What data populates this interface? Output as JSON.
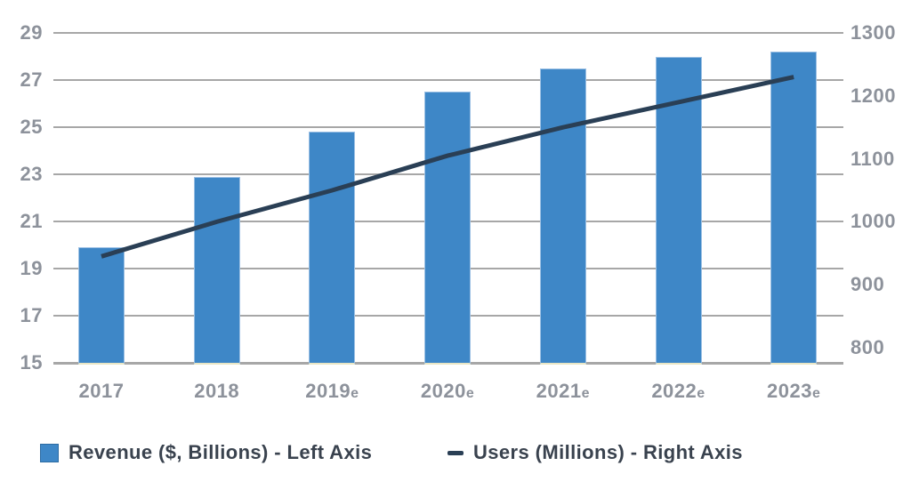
{
  "chart_data": {
    "type": "combo-bar-line",
    "categories": [
      "2017",
      "2018",
      "2019e",
      "2020e",
      "2021e",
      "2022e",
      "2023e"
    ],
    "series": [
      {
        "name": "Revenue ($, Billions) - Left Axis",
        "type": "bar",
        "axis": "left",
        "color": "#3e87c7",
        "values": [
          19.9,
          22.9,
          24.8,
          26.5,
          27.5,
          28.0,
          28.2
        ]
      },
      {
        "name": "Users (Millions) - Right Axis",
        "type": "line",
        "axis": "right",
        "color": "#2a3f55",
        "values": [
          945,
          1000,
          1050,
          1105,
          1150,
          1190,
          1230
        ]
      }
    ],
    "left_axis": {
      "min": 15,
      "max": 29,
      "step": 2,
      "ticks": [
        29,
        27,
        25,
        23,
        21,
        19,
        17,
        15
      ]
    },
    "right_axis": {
      "min": 800,
      "max": 1300,
      "step": 100,
      "ticks": [
        1300,
        1200,
        1100,
        1000,
        900,
        800
      ]
    },
    "grid": true,
    "legend_position": "bottom",
    "title": ""
  },
  "colors": {
    "bar_fill": "#3e87c7",
    "bar_edge": "#9cc0e4",
    "bar_base_edge": "#e9e6c5",
    "line": "#2a3f55",
    "gridline": "#a7a7a7",
    "axis_text": "#8d929b",
    "legend_text": "#39424e",
    "background": "#ffffff"
  }
}
